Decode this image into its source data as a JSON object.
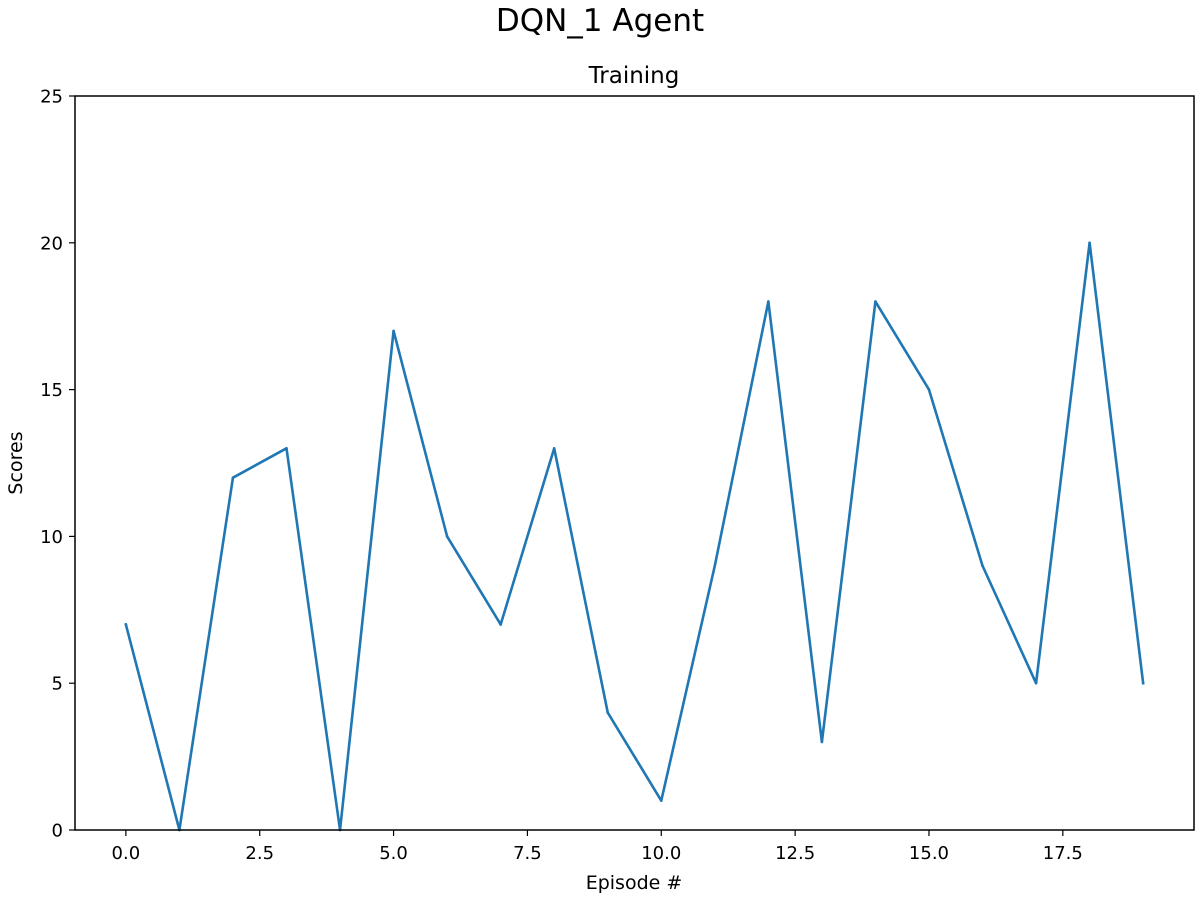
{
  "figure": {
    "suptitle": "DQN_1 Agent"
  },
  "chart_data": {
    "type": "line",
    "title": "Training",
    "xlabel": "Episode #",
    "ylabel": "Scores",
    "xlim": [
      -0.95,
      19.95
    ],
    "ylim": [
      0,
      25
    ],
    "xticks": [
      0.0,
      2.5,
      5.0,
      7.5,
      10.0,
      12.5,
      15.0,
      17.5
    ],
    "xtick_labels": [
      "0.0",
      "2.5",
      "5.0",
      "7.5",
      "10.0",
      "12.5",
      "15.0",
      "17.5"
    ],
    "yticks": [
      0,
      5,
      10,
      15,
      20,
      25
    ],
    "ytick_labels": [
      "0",
      "5",
      "10",
      "15",
      "20",
      "25"
    ],
    "grid": false,
    "series": [
      {
        "color": "#1f77b4",
        "x": [
          0,
          1,
          2,
          3,
          4,
          5,
          6,
          7,
          8,
          9,
          10,
          11,
          12,
          13,
          14,
          15,
          16,
          17,
          18,
          19
        ],
        "y": [
          7,
          0,
          12,
          13,
          0,
          17,
          10,
          7,
          13,
          4,
          1,
          9,
          18,
          3,
          18,
          15,
          9,
          5,
          20,
          5
        ]
      }
    ]
  }
}
